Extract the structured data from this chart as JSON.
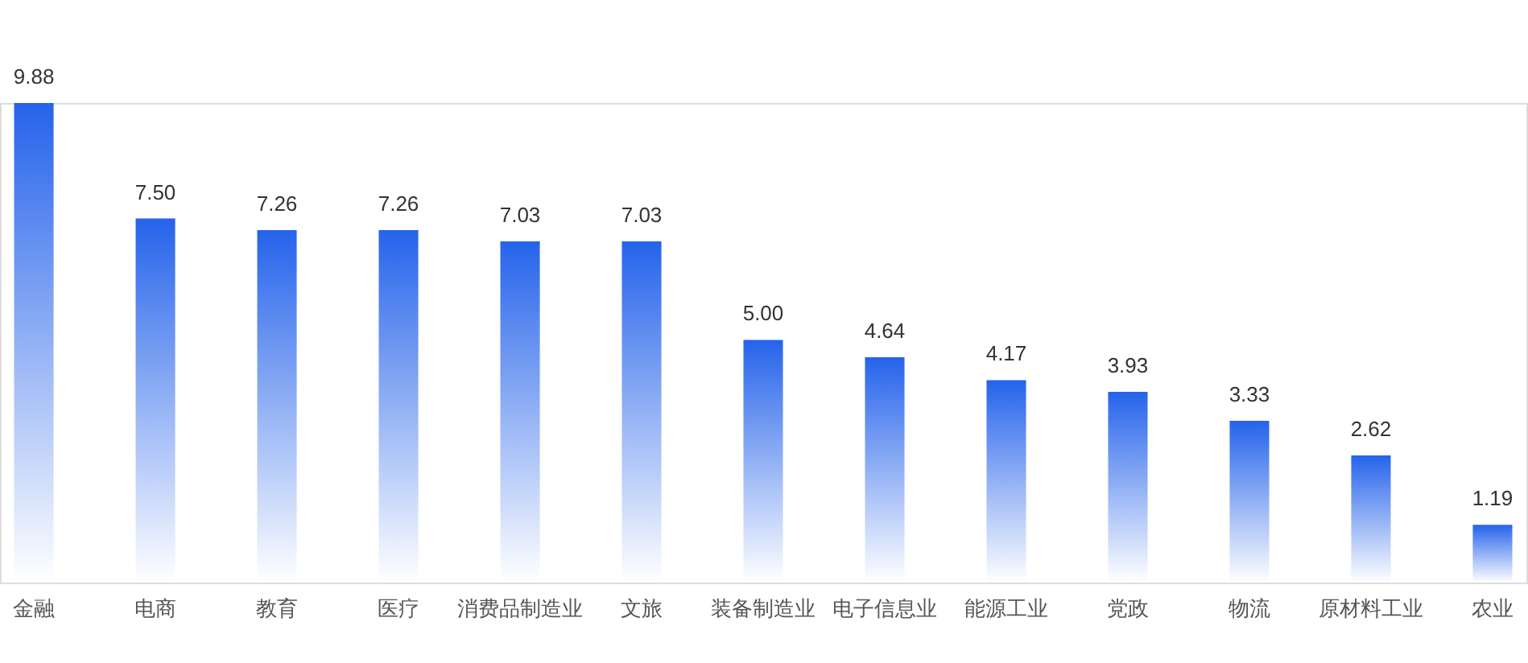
{
  "chart_data": {
    "type": "bar",
    "categories": [
      "金融",
      "电商",
      "教育",
      "医疗",
      "消费品制造业",
      "文旅",
      "装备制造业",
      "电子信息业",
      "能源工业",
      "党政",
      "物流",
      "原材料工业",
      "农业"
    ],
    "values": [
      9.88,
      7.5,
      7.26,
      7.26,
      7.03,
      7.03,
      5.0,
      4.64,
      4.17,
      3.93,
      3.33,
      2.62,
      1.19
    ],
    "value_labels": [
      "9.88",
      "7.50",
      "7.26",
      "7.26",
      "7.03",
      "7.03",
      "5.00",
      "4.64",
      "4.17",
      "3.93",
      "3.33",
      "2.62",
      "1.19"
    ],
    "color": "#2563eb"
  }
}
